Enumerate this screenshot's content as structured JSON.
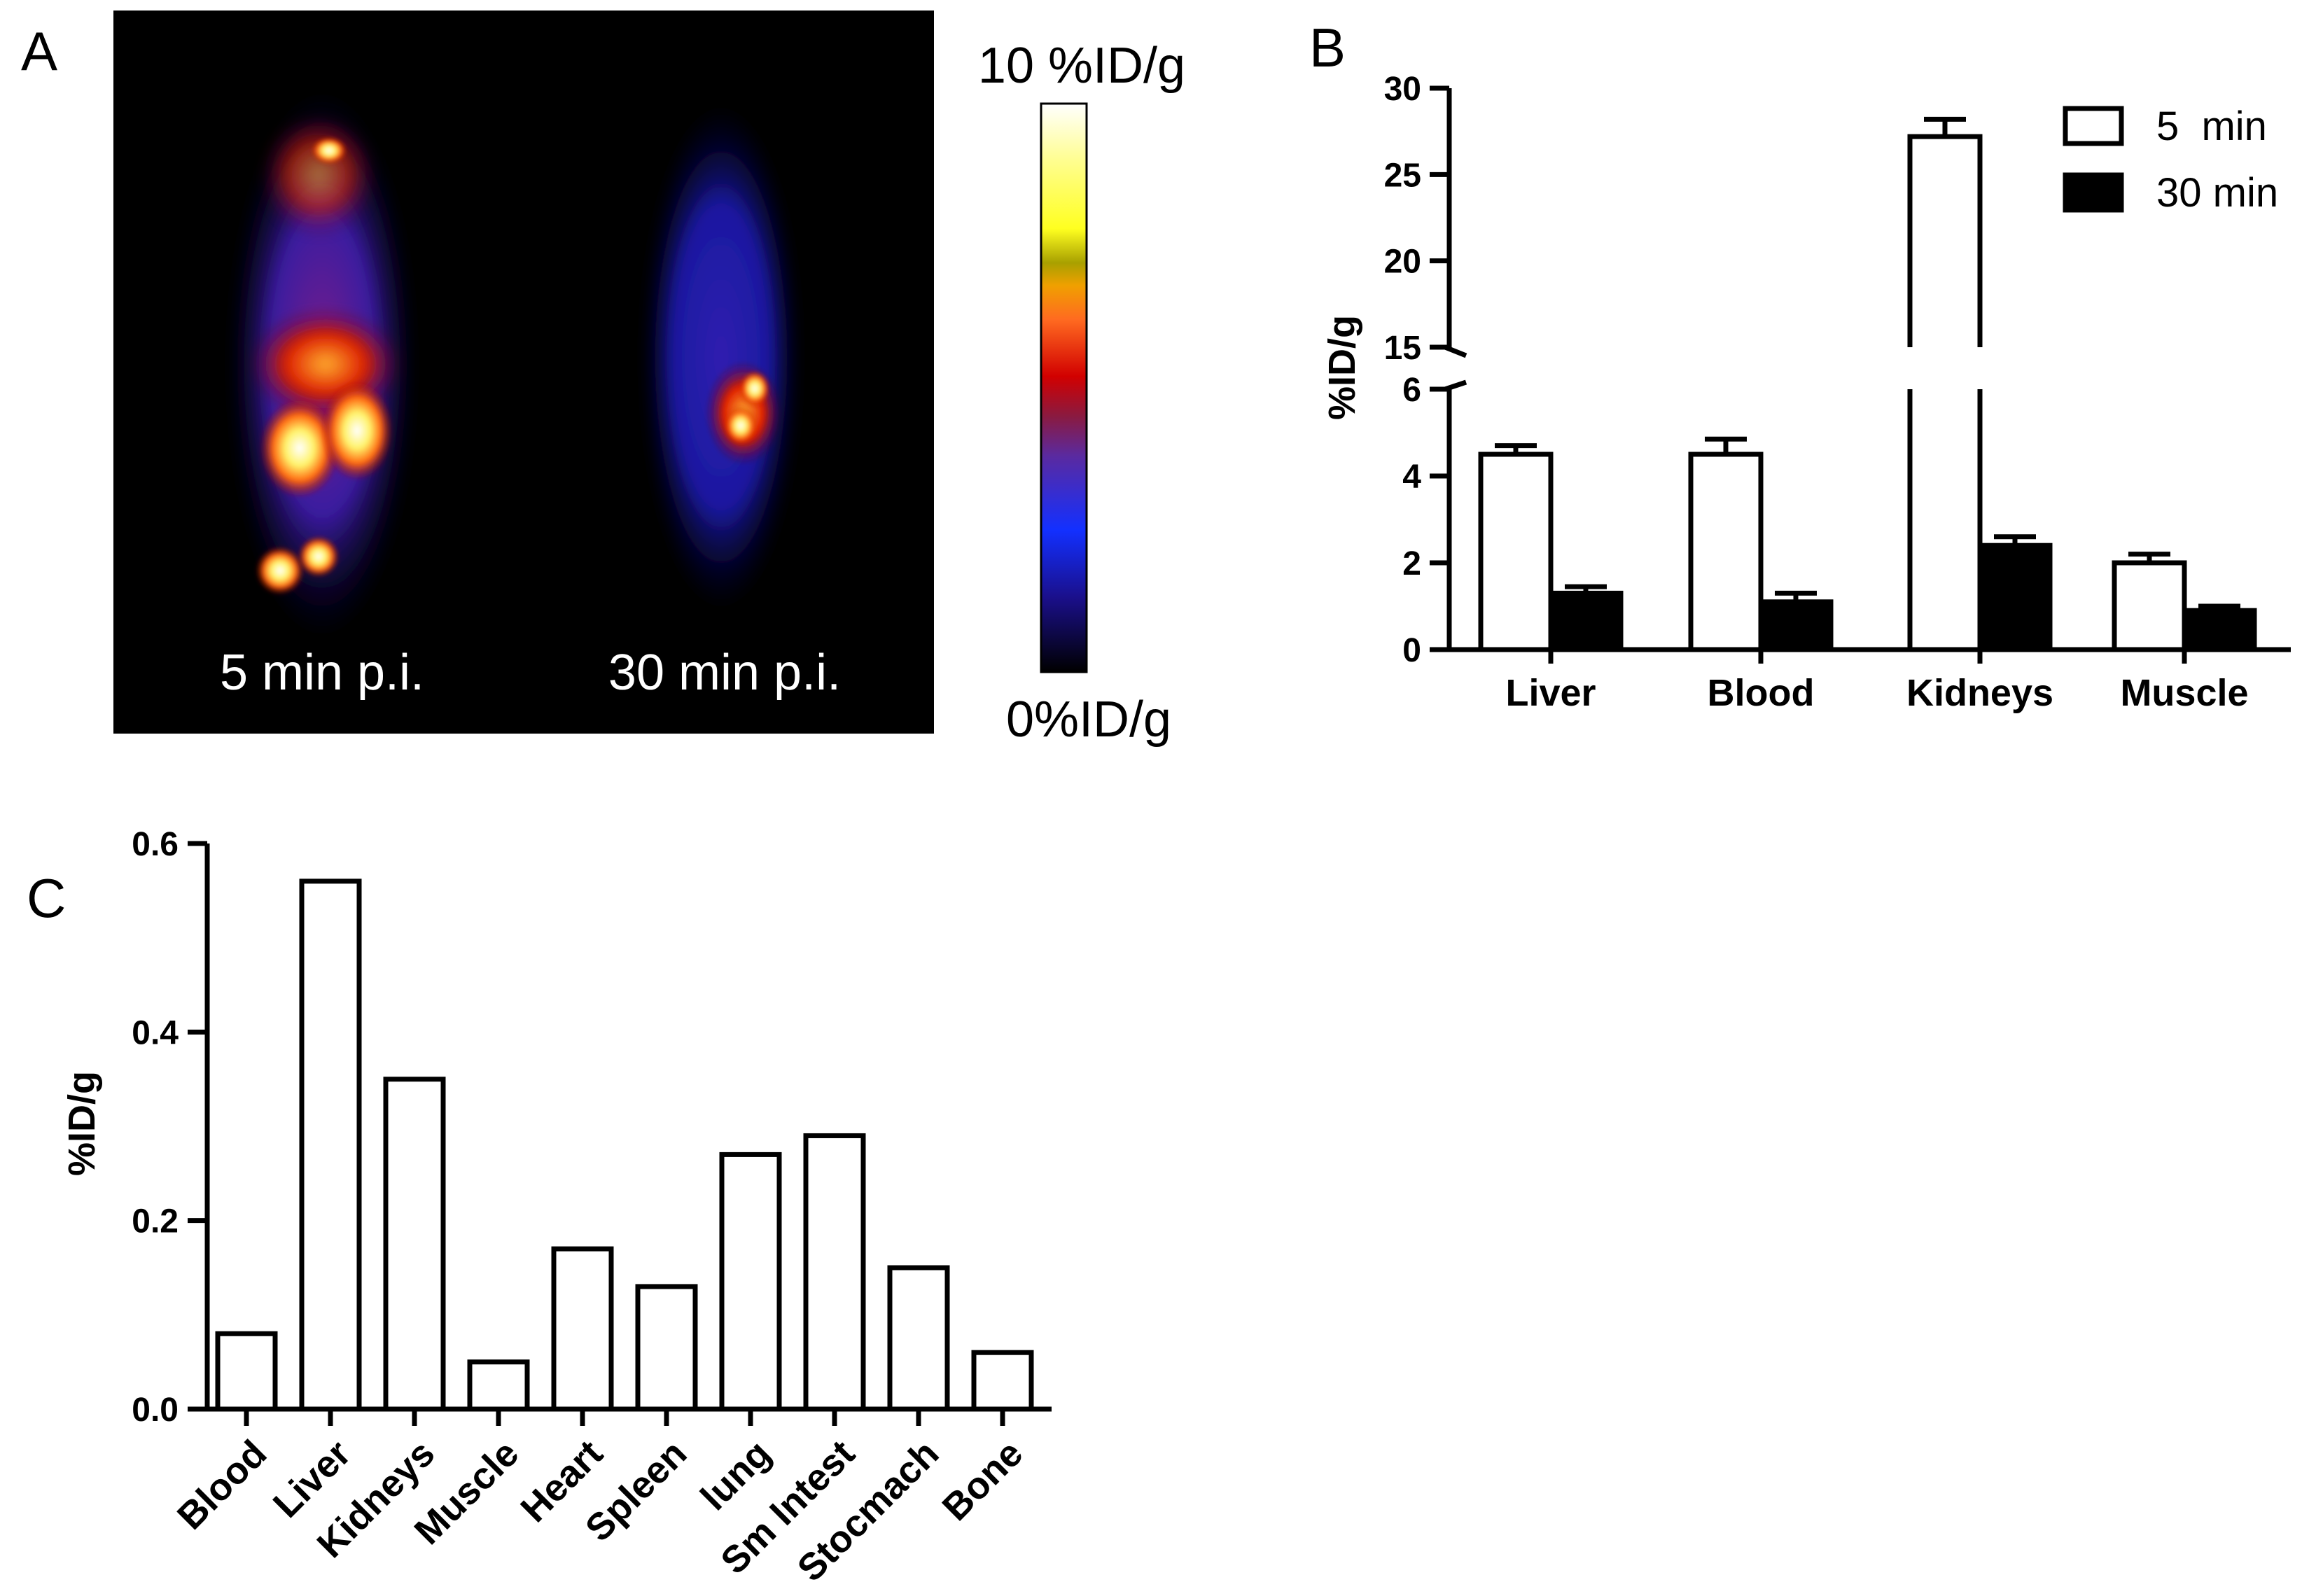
{
  "panel_a": {
    "letter": "A",
    "captions": [
      "5 min p.i.",
      "30 min p.i."
    ],
    "colorbar_max_label": "10 %ID/g",
    "colorbar_min_label": "0%ID/g"
  },
  "panel_b_letter": "B",
  "panel_c_letter": "C",
  "colors": {
    "ink": "#000000",
    "paper": "#ffffff",
    "pet_bg": "#000000"
  },
  "chart_data": [
    {
      "id": "B",
      "type": "bar",
      "categories": [
        "Liver",
        "Blood",
        "Kidneys",
        "Muscle"
      ],
      "series": [
        {
          "name": "5  min",
          "values": [
            4.5,
            4.5,
            27.2,
            2.0
          ],
          "errors": [
            0.2,
            0.35,
            1.0,
            0.2
          ],
          "fill": "#ffffff"
        },
        {
          "name": "30 min",
          "values": [
            1.3,
            1.1,
            2.4,
            0.9
          ],
          "errors": [
            0.15,
            0.2,
            0.2,
            0.1
          ],
          "fill": "#000000"
        }
      ],
      "ylabel": "%ID/g",
      "y_segments": [
        {
          "range": [
            0,
            6
          ],
          "ticks": [
            0,
            2,
            4,
            6
          ]
        },
        {
          "range": [
            15,
            30
          ],
          "ticks": [
            15,
            20,
            25,
            30
          ]
        }
      ],
      "legend_position": "top-right"
    },
    {
      "id": "C",
      "type": "bar",
      "categories": [
        "Blood",
        "Liver",
        "Kidneys",
        "Muscle",
        "Heart",
        "Spleen",
        "lung",
        "Sm Intest",
        "Stocmach",
        "Bone"
      ],
      "values": [
        0.08,
        0.56,
        0.35,
        0.05,
        0.17,
        0.13,
        0.27,
        0.29,
        0.15,
        0.06
      ],
      "ylabel": "%ID/g",
      "ylim": [
        0,
        0.6
      ],
      "yticks": [
        "0.0",
        "0.2",
        "0.4",
        "0.6"
      ]
    }
  ]
}
